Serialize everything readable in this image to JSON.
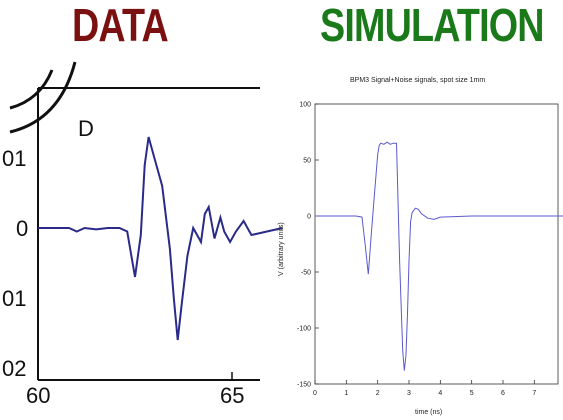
{
  "headings": {
    "left": "DATA",
    "right": "SIMULATION"
  },
  "colors": {
    "left_heading": "#7a1010",
    "right_heading": "#1a7a1a",
    "line": "#2a2a8a",
    "sim_line": "#5a5ad0"
  },
  "chart_data": [
    {
      "type": "line",
      "title": "",
      "panel_label": "D",
      "xlabel": "",
      "ylabel": "",
      "xlim": [
        60,
        66.3
      ],
      "ylim": [
        -2.0,
        1.5
      ],
      "x_ticks": [
        60,
        65
      ],
      "x_tick_labels": [
        "60",
        "65"
      ],
      "y_ticks": [
        1,
        0,
        -1,
        -2
      ],
      "y_tick_labels": [
        "01",
        "0",
        "01",
        "02"
      ],
      "series": [
        {
          "x": [
            60.0,
            60.4,
            60.8,
            61.0,
            61.2,
            61.5,
            61.8,
            62.1,
            62.3,
            62.5,
            62.65,
            62.75,
            62.85,
            63.0,
            63.2,
            63.4,
            63.5,
            63.6,
            63.7,
            63.85,
            64.0,
            64.2,
            64.3,
            64.4,
            64.55,
            64.7,
            64.8,
            64.95,
            65.1,
            65.3,
            65.5,
            66.3
          ],
          "y": [
            0.0,
            0.0,
            0.0,
            -0.05,
            0.0,
            -0.02,
            0.0,
            0.0,
            -0.05,
            -0.7,
            -0.1,
            0.9,
            1.3,
            1.0,
            0.6,
            -0.3,
            -1.0,
            -1.6,
            -1.1,
            -0.4,
            0.0,
            -0.2,
            0.2,
            0.3,
            -0.15,
            0.15,
            -0.05,
            -0.2,
            -0.05,
            0.1,
            -0.1,
            0.0
          ]
        }
      ]
    },
    {
      "type": "line",
      "title": "BPM3 Signal+Noise signals, spot size 1mm",
      "xlabel": "time (ns)",
      "ylabel": "V (arbitrary units)",
      "xlim": [
        0,
        7.5
      ],
      "ylim": [
        -150,
        100
      ],
      "x_ticks": [
        0,
        1,
        2,
        3,
        4,
        5,
        6,
        7
      ],
      "y_ticks": [
        100,
        50,
        0,
        -50,
        -100,
        -150
      ],
      "series": [
        {
          "x": [
            0,
            1.3,
            1.5,
            1.6,
            1.7,
            1.8,
            1.9,
            2.0,
            2.05,
            2.1,
            2.2,
            2.3,
            2.4,
            2.5,
            2.6,
            2.7,
            2.8,
            2.85,
            2.9,
            2.95,
            3.0,
            3.05,
            3.1,
            3.2,
            3.3,
            3.4,
            3.6,
            3.8,
            4.0,
            5.0,
            6.0,
            8.0
          ],
          "y": [
            0,
            0,
            -1,
            -25,
            -52,
            -15,
            20,
            55,
            63,
            65,
            64,
            66,
            64,
            65,
            65,
            -40,
            -120,
            -138,
            -125,
            -90,
            -40,
            -5,
            3,
            7,
            6,
            2,
            -2,
            -3,
            -1,
            0,
            0,
            0
          ]
        }
      ]
    }
  ]
}
